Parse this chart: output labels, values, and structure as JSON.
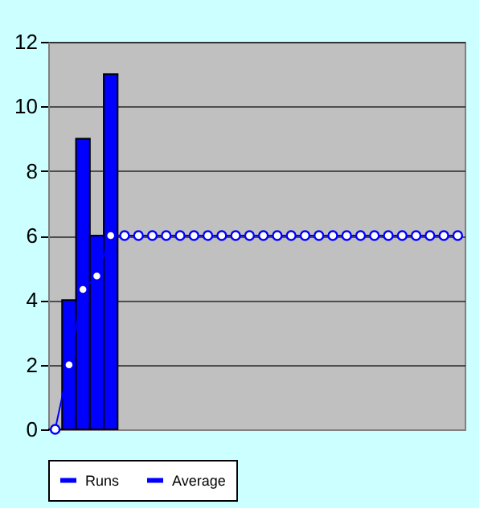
{
  "chart_data": {
    "type": "bar",
    "categories": [
      null,
      null,
      null,
      null,
      null,
      null,
      null,
      null,
      null,
      null,
      null,
      null,
      null,
      null,
      null,
      null,
      null,
      null,
      null,
      null,
      null,
      null,
      null,
      null,
      null,
      null,
      null,
      null,
      null,
      null
    ],
    "series": [
      {
        "name": "Runs",
        "color": "#0000ff",
        "values": [
          0,
          4,
          9,
          6,
          11,
          null,
          null,
          null,
          null,
          null,
          null,
          null,
          null,
          null,
          null,
          null,
          null,
          null,
          null,
          null,
          null,
          null,
          null,
          null,
          null,
          null,
          null,
          null,
          null,
          null
        ]
      },
      {
        "name": "Average",
        "type": "line",
        "color": "#0000ff",
        "marker": "circle",
        "values": [
          0,
          2,
          4.33,
          4.75,
          6,
          6,
          6,
          6,
          6,
          6,
          6,
          6,
          6,
          6,
          6,
          6,
          6,
          6,
          6,
          6,
          6,
          6,
          6,
          6,
          6,
          6,
          6,
          6,
          6,
          6
        ]
      }
    ],
    "ylim": [
      0,
      12
    ],
    "yticks": [
      0,
      2,
      4,
      6,
      8,
      10,
      12
    ],
    "grid": "y",
    "legend": "bottom",
    "tick_labels": "y"
  }
}
